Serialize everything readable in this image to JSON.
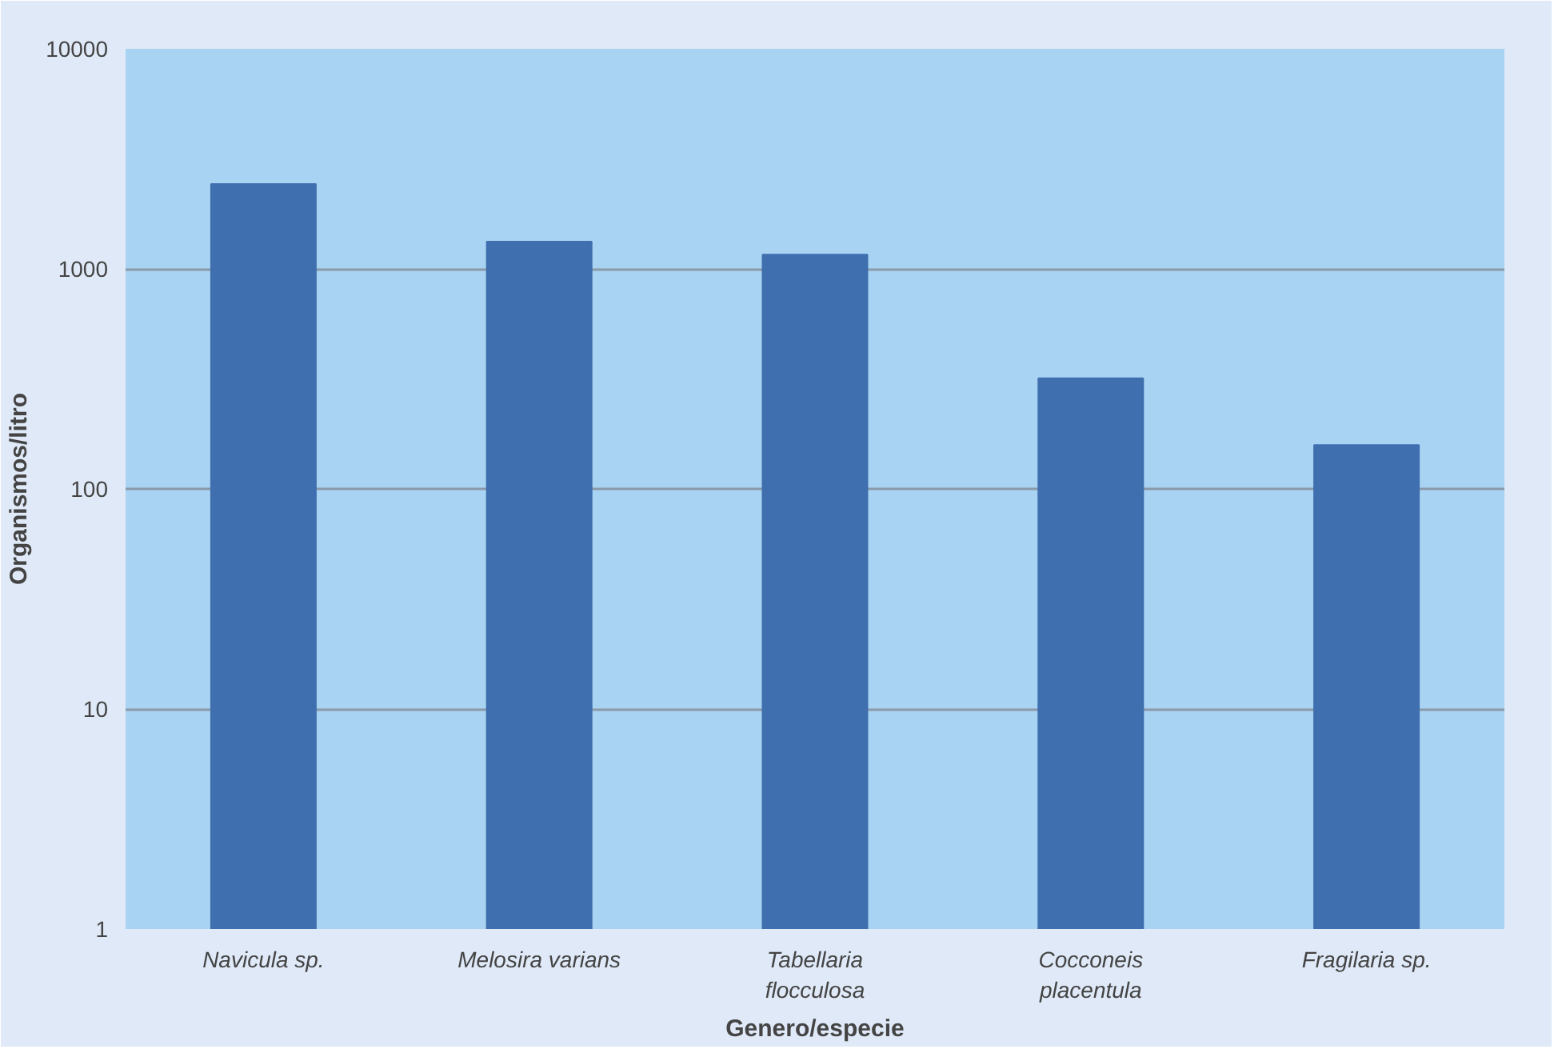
{
  "chart_data": {
    "type": "bar",
    "xlabel": "Genero/especie",
    "ylabel": "Organismos/litro",
    "categories": [
      "Navicula sp.",
      "Melosira varians",
      "Tabellaria flocculosa",
      "Cocconeis placentula",
      "Fragilaria sp."
    ],
    "values": [
      2430,
      1330,
      1160,
      318,
      158
    ],
    "color": "#3f6fae",
    "log": true,
    "ylim": [
      1,
      10000
    ],
    "yticks": [
      1,
      10,
      100,
      1000,
      10000
    ],
    "grid": "y"
  }
}
